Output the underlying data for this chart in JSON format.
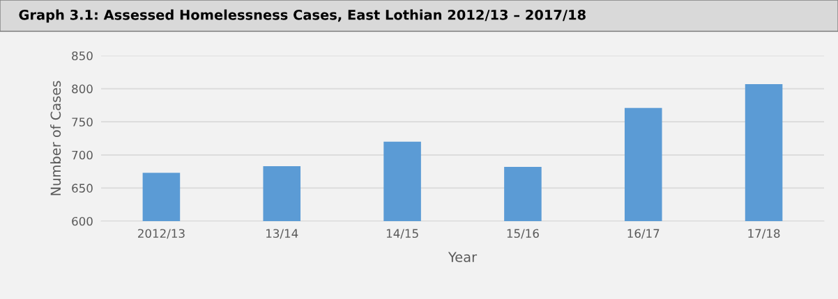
{
  "chart_data": {
    "type": "bar",
    "title": "Graph 3.1: Assessed Homelessness Cases, East Lothian 2012/13 – 2017/18",
    "xlabel": "Year",
    "ylabel": "Number of Cases",
    "categories": [
      "2012/13",
      "13/14",
      "14/15",
      "15/16",
      "16/17",
      "17/18"
    ],
    "values": [
      673,
      683,
      720,
      682,
      771,
      807
    ],
    "color": "#5b9bd5",
    "ylim": [
      600,
      850
    ],
    "yticks": [
      600,
      650,
      700,
      750,
      800,
      850
    ],
    "grid": "y"
  }
}
